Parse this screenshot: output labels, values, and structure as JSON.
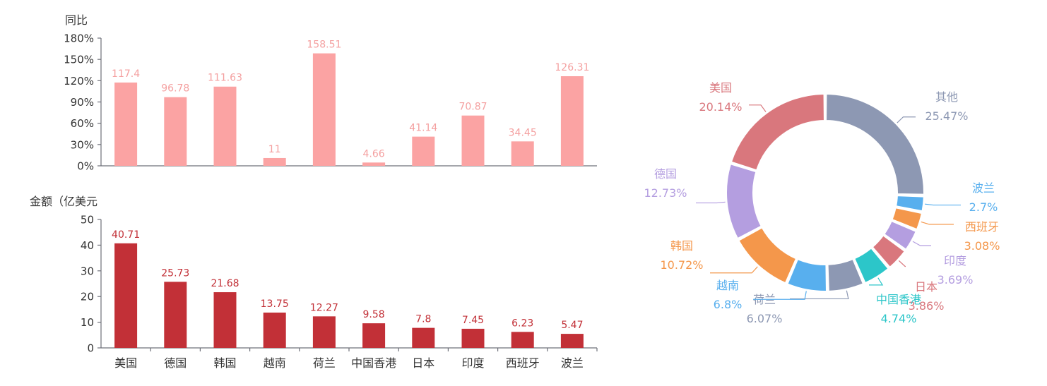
{
  "chart_data": [
    {
      "type": "bar",
      "ylabel": "同比",
      "categories": [
        "美国",
        "德国",
        "韩国",
        "越南",
        "荷兰",
        "中国香港",
        "日本",
        "印度",
        "西班牙",
        "波兰"
      ],
      "values": [
        117.4,
        96.78,
        111.63,
        11,
        158.51,
        4.66,
        41.14,
        70.87,
        34.45,
        126.31
      ],
      "yticks": [
        "0%",
        "30%",
        "60%",
        "90%",
        "120%",
        "150%",
        "180%"
      ],
      "ylim": [
        0,
        180
      ],
      "color": "#fba3a3",
      "label_color": "#f4a0a0"
    },
    {
      "type": "bar",
      "ylabel": "金额（亿美元",
      "categories": [
        "美国",
        "德国",
        "韩国",
        "越南",
        "荷兰",
        "中国香港",
        "日本",
        "印度",
        "西班牙",
        "波兰"
      ],
      "values": [
        40.71,
        25.73,
        21.68,
        13.75,
        12.27,
        9.58,
        7.8,
        7.45,
        6.23,
        5.47
      ],
      "yticks": [
        "0",
        "10",
        "20",
        "30",
        "40",
        "50"
      ],
      "ylim": [
        0,
        50
      ],
      "color": "#c23037",
      "label_color": "#c23037"
    },
    {
      "type": "pie",
      "donut": true,
      "slices": [
        {
          "name": "其他",
          "value": 25.47,
          "label": "25.47%",
          "color": "#8d98b3"
        },
        {
          "name": "波兰",
          "value": 2.7,
          "label": "2.7%",
          "color": "#58afee"
        },
        {
          "name": "西班牙",
          "value": 3.08,
          "label": "3.08%",
          "color": "#f4974b"
        },
        {
          "name": "印度",
          "value": 3.69,
          "label": "3.69%",
          "color": "#b49ee0"
        },
        {
          "name": "日本",
          "value": 3.86,
          "label": "3.86%",
          "color": "#d9777d"
        },
        {
          "name": "中国香港",
          "value": 4.74,
          "label": "4.74%",
          "color": "#2cc6c9"
        },
        {
          "name": "荷兰",
          "value": 6.07,
          "label": "6.07%",
          "color": "#8d98b3"
        },
        {
          "name": "越南",
          "value": 6.8,
          "label": "6.8%",
          "color": "#58afee"
        },
        {
          "name": "韩国",
          "value": 10.72,
          "label": "10.72%",
          "color": "#f4974b"
        },
        {
          "name": "德国",
          "value": 12.73,
          "label": "12.73%",
          "color": "#b49ee0"
        },
        {
          "name": "美国",
          "value": 20.14,
          "label": "20.14%",
          "color": "#d9777d"
        }
      ]
    }
  ]
}
